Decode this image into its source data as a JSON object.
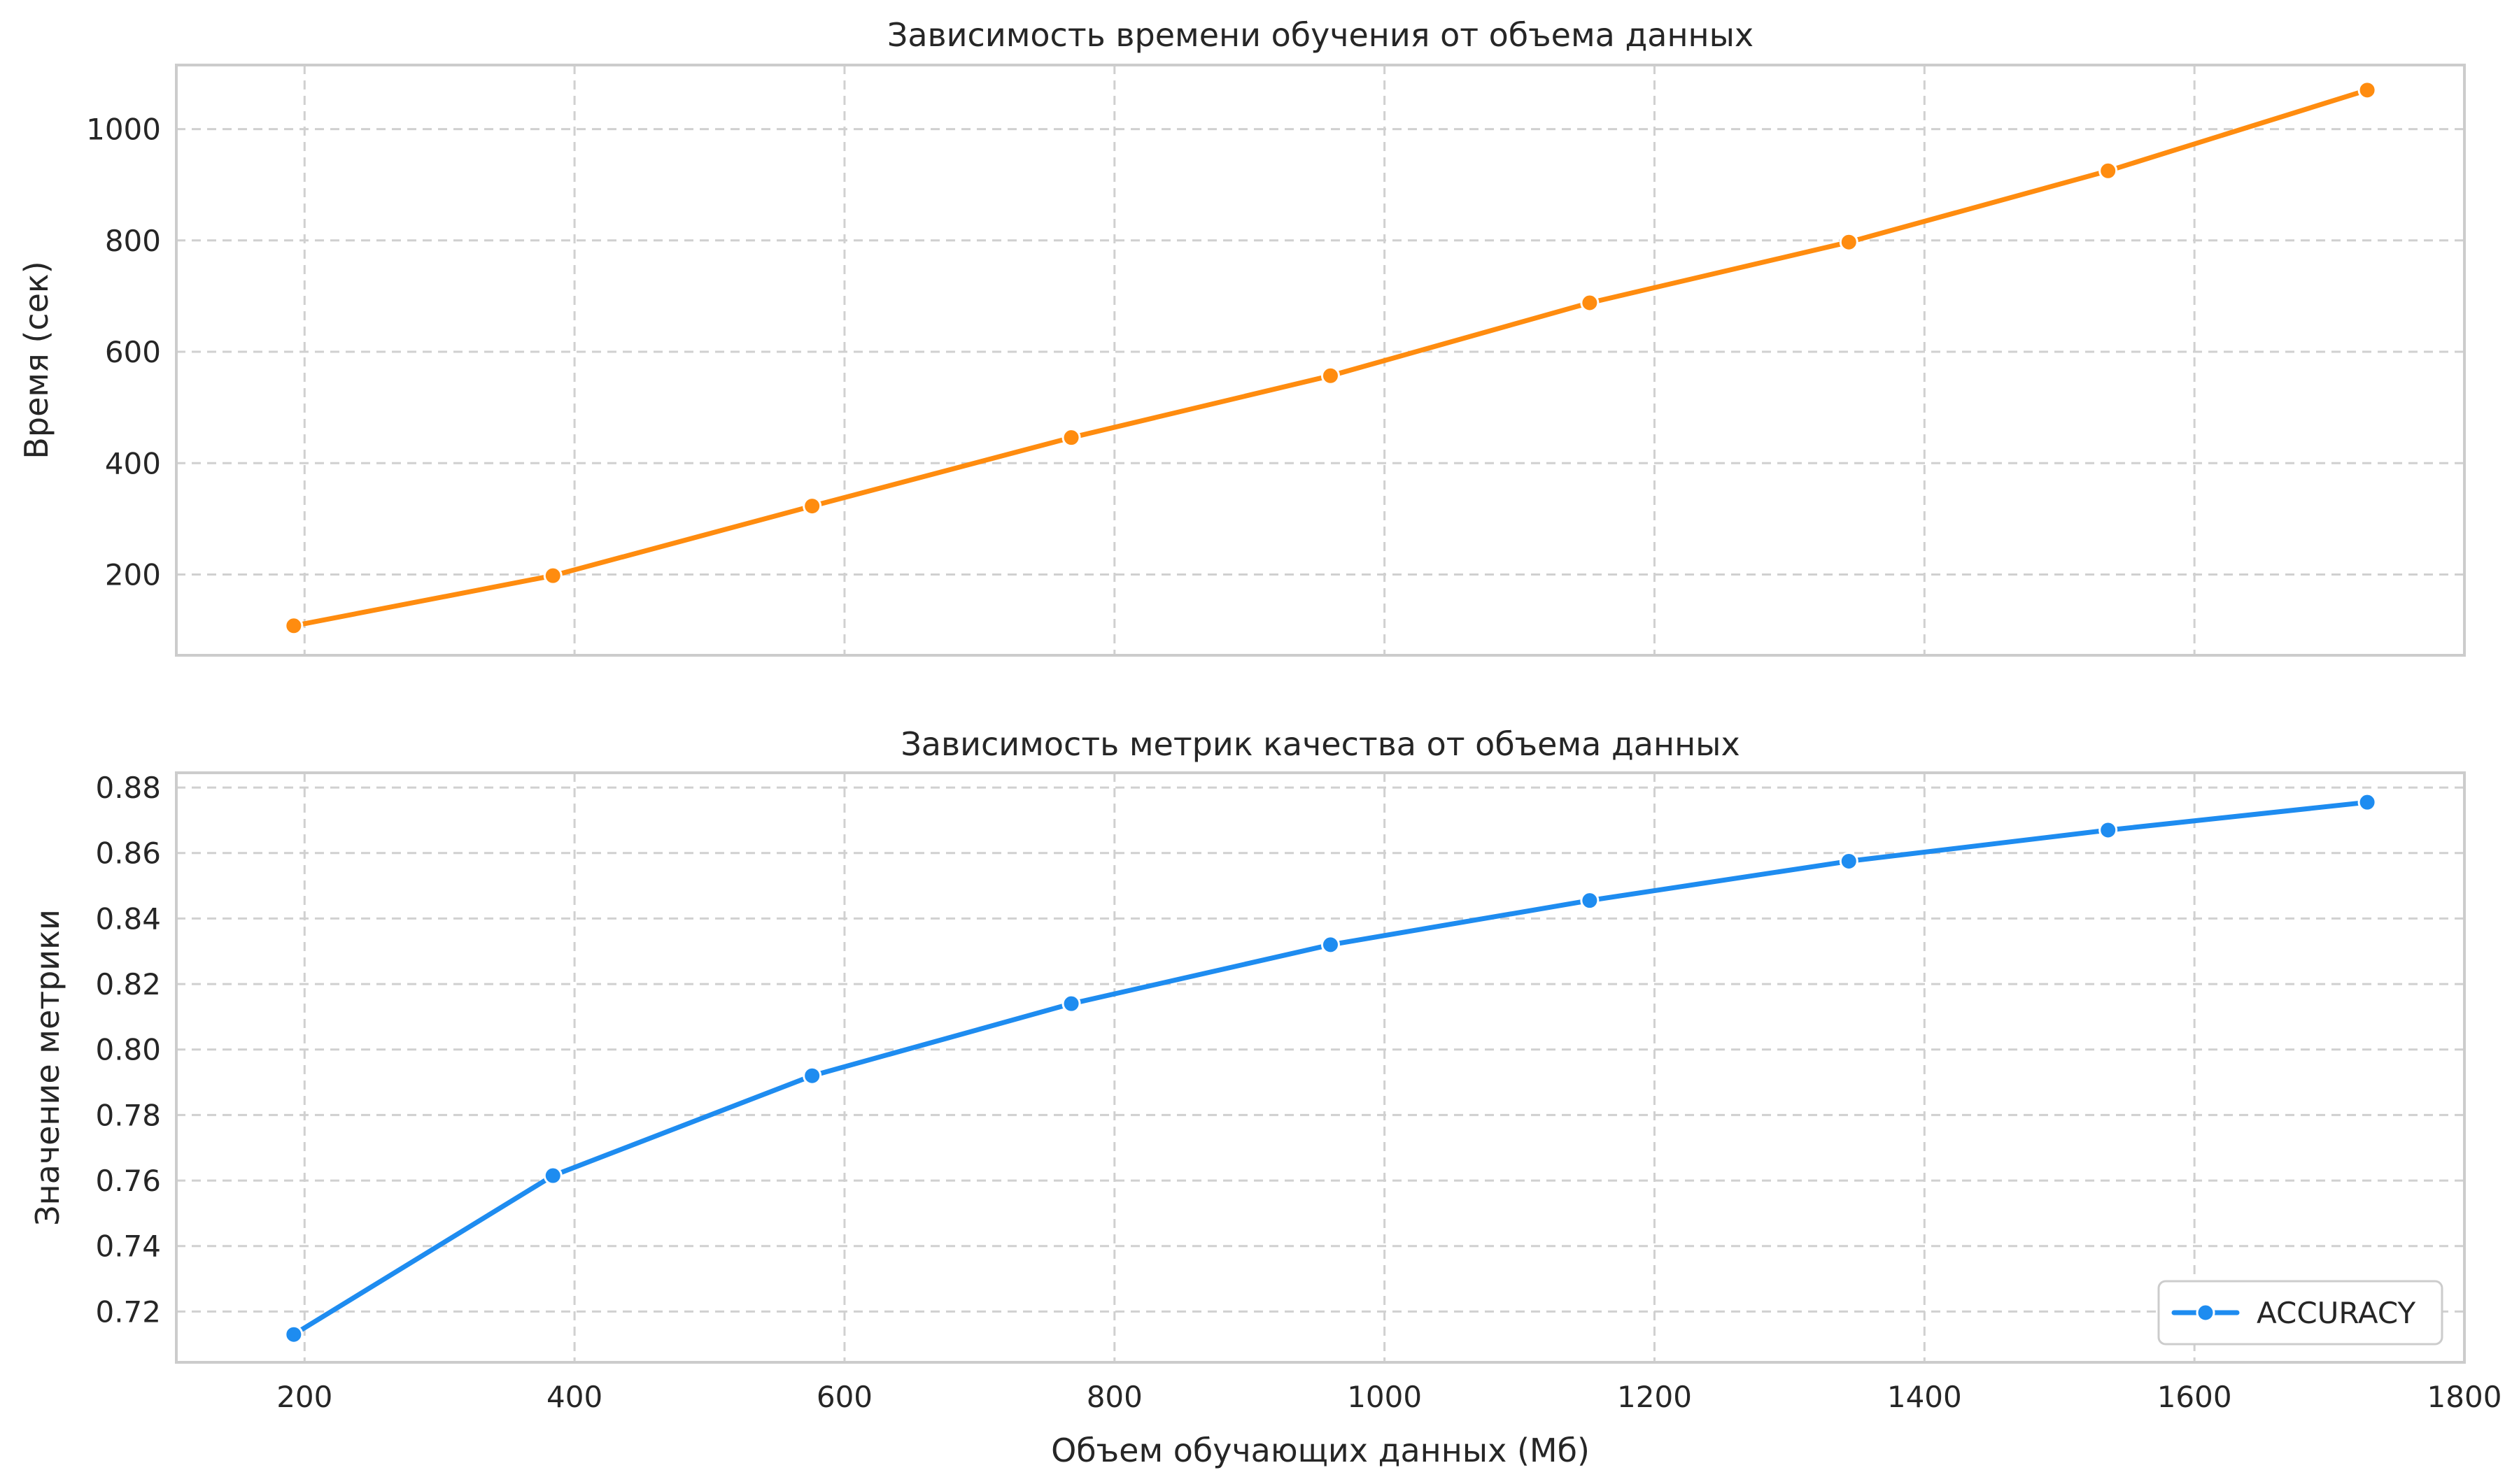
{
  "chart_data": [
    {
      "type": "line",
      "title": "Зависимость времени обучения от объема данных",
      "xlabel": "",
      "ylabel": "Время (сек)",
      "xlim": [
        105,
        1800
      ],
      "ylim": [
        55,
        1115
      ],
      "xticks": [
        200,
        400,
        600,
        800,
        1000,
        1200,
        1400,
        1600,
        1800
      ],
      "xtick_labels": [
        "",
        "",
        "",
        "",
        "",
        "",
        "",
        "",
        ""
      ],
      "yticks": [
        200,
        400,
        600,
        800,
        1000
      ],
      "ytick_labels": [
        "200",
        "400",
        "600",
        "800",
        "1000"
      ],
      "grid": true,
      "legend": null,
      "series": [
        {
          "name": "",
          "color": "#ff8c0f",
          "x": [
            192,
            384,
            576,
            768,
            960,
            1152,
            1344,
            1536,
            1728
          ],
          "y": [
            108,
            198,
            323,
            446,
            557,
            688,
            797,
            925,
            1070
          ]
        }
      ]
    },
    {
      "type": "line",
      "title": "Зависимость метрик качества от объема данных",
      "xlabel": "Объем обучающих данных (Мб)",
      "ylabel": "Значение метрики",
      "xlim": [
        105,
        1800
      ],
      "ylim": [
        0.7045,
        0.8845
      ],
      "xticks": [
        200,
        400,
        600,
        800,
        1000,
        1200,
        1400,
        1600,
        1800
      ],
      "xtick_labels": [
        "200",
        "400",
        "600",
        "800",
        "1000",
        "1200",
        "1400",
        "1600",
        "1800"
      ],
      "yticks": [
        0.72,
        0.74,
        0.76,
        0.78,
        0.8,
        0.82,
        0.84,
        0.86,
        0.88
      ],
      "ytick_labels": [
        "0.72",
        "0.74",
        "0.76",
        "0.78",
        "0.80",
        "0.82",
        "0.84",
        "0.86",
        "0.88"
      ],
      "grid": true,
      "legend": "lower-right",
      "series": [
        {
          "name": "ACCURACY",
          "color": "#1e8cf0",
          "x": [
            192,
            384,
            576,
            768,
            960,
            1152,
            1344,
            1536,
            1728
          ],
          "y": [
            0.713,
            0.7615,
            0.792,
            0.814,
            0.832,
            0.8455,
            0.8575,
            0.867,
            0.8755
          ]
        }
      ]
    }
  ]
}
